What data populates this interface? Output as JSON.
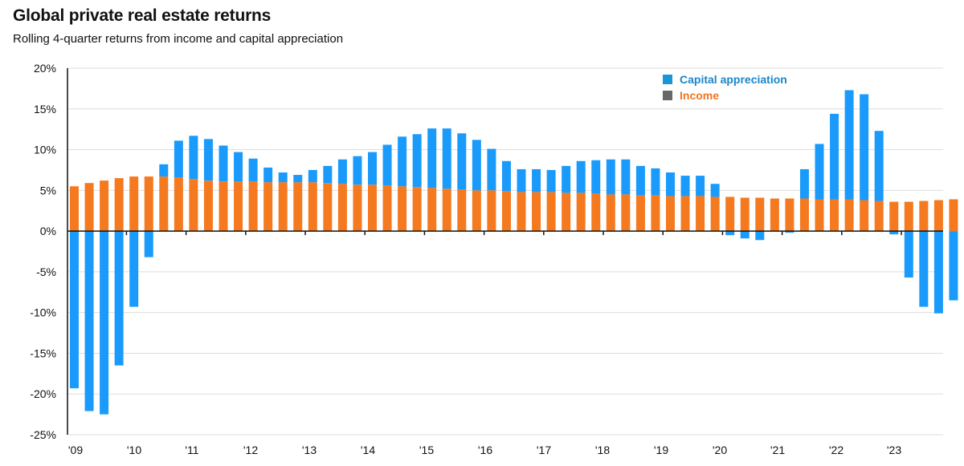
{
  "chart_data": {
    "type": "bar",
    "stacked": true,
    "title": "Global private real estate returns",
    "subtitle": "Rolling 4-quarter returns from income and capital appreciation",
    "ylim": [
      -25,
      20
    ],
    "yticks": [
      20,
      15,
      10,
      5,
      0,
      -5,
      -10,
      -15,
      -20,
      -25
    ],
    "ytick_labels": [
      "20%",
      "15%",
      "10%",
      "5%",
      "0%",
      "-5%",
      "-10%",
      "-15%",
      "-20%",
      "-25%"
    ],
    "grid": true,
    "legend_position": "top-right",
    "x_tick_labels": [
      "'09",
      "'10",
      "'11",
      "'12",
      "'13",
      "'14",
      "'15",
      "'16",
      "'17",
      "'18",
      "'19",
      "'20",
      "'21",
      "'22",
      "'23"
    ],
    "series": [
      {
        "name": "Capital appreciation",
        "color": "#1a9bfc",
        "legend_text_color": "#1a86c8",
        "legend_swatch_color": "#1a96d6",
        "values": [
          -19.3,
          -22.1,
          -22.5,
          -16.5,
          -9.3,
          -3.2,
          1.5,
          4.5,
          5.3,
          5.1,
          4.4,
          3.6,
          2.8,
          1.8,
          1.2,
          0.9,
          1.5,
          2.1,
          3.0,
          3.5,
          4.0,
          5.0,
          6.1,
          6.5,
          7.3,
          7.4,
          6.9,
          6.2,
          5.1,
          3.7,
          2.8,
          2.8,
          2.7,
          3.3,
          3.9,
          4.1,
          4.3,
          4.3,
          3.6,
          3.3,
          2.9,
          2.5,
          2.5,
          1.6,
          -0.5,
          -0.9,
          -1.1,
          0.0,
          -0.2,
          3.6,
          6.8,
          10.5,
          13.4,
          13.0,
          8.6,
          -0.4,
          -5.7,
          -9.3,
          -10.1,
          -8.5
        ],
        "labels": []
      },
      {
        "name": "Income",
        "color": "#f5791f",
        "legend_text_color": "#f07622",
        "legend_swatch_color": "#686868",
        "values": [
          5.5,
          5.9,
          6.2,
          6.5,
          6.7,
          6.7,
          6.7,
          6.6,
          6.4,
          6.2,
          6.1,
          6.1,
          6.1,
          6.0,
          6.0,
          6.0,
          6.0,
          5.9,
          5.8,
          5.7,
          5.7,
          5.6,
          5.5,
          5.4,
          5.3,
          5.2,
          5.1,
          5.0,
          5.0,
          4.9,
          4.8,
          4.8,
          4.8,
          4.7,
          4.7,
          4.6,
          4.5,
          4.5,
          4.4,
          4.4,
          4.3,
          4.3,
          4.3,
          4.2,
          4.2,
          4.1,
          4.1,
          4.0,
          4.0,
          4.0,
          3.9,
          3.9,
          3.9,
          3.8,
          3.7,
          3.6,
          3.6,
          3.7,
          3.8,
          3.9
        ],
        "labels": []
      }
    ]
  }
}
